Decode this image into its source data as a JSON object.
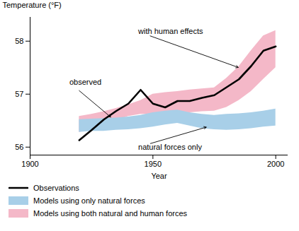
{
  "chart_data": {
    "type": "line",
    "xlabel": "Year",
    "ylabel": "Temperature (°F)",
    "xlim": [
      1900,
      2005
    ],
    "ylim": [
      55.85,
      58.45
    ],
    "xticks": [
      1900,
      1950,
      2000
    ],
    "yticks": [
      56,
      57,
      58
    ],
    "x": [
      1920,
      1925,
      1930,
      1935,
      1940,
      1945,
      1950,
      1955,
      1960,
      1965,
      1970,
      1975,
      1980,
      1985,
      1990,
      1995,
      2000
    ],
    "series": [
      {
        "name": "Observations",
        "type": "line",
        "color": "#000000",
        "values": [
          56.13,
          56.32,
          56.52,
          56.68,
          56.82,
          57.08,
          56.82,
          56.75,
          56.87,
          56.87,
          56.93,
          56.98,
          57.13,
          57.28,
          57.53,
          57.82,
          57.9
        ]
      },
      {
        "name": "Models using only natural forces",
        "type": "area",
        "color": "#a8cfe8",
        "low": [
          56.28,
          56.3,
          56.3,
          56.32,
          56.33,
          56.35,
          56.38,
          56.42,
          56.45,
          56.4,
          56.35,
          56.33,
          56.32,
          56.33,
          56.35,
          56.38,
          56.4
        ],
        "high": [
          56.52,
          56.53,
          56.54,
          56.55,
          56.57,
          56.6,
          56.65,
          56.68,
          56.7,
          56.65,
          56.62,
          56.6,
          56.62,
          56.63,
          56.65,
          56.68,
          56.72
        ]
      },
      {
        "name": "Models using both natural and human forces",
        "type": "area",
        "color": "#f4b8c8",
        "low": [
          56.28,
          56.33,
          56.4,
          56.5,
          56.58,
          56.62,
          56.62,
          56.62,
          56.63,
          56.65,
          56.67,
          56.68,
          56.75,
          56.88,
          57.05,
          57.28,
          57.5
        ],
        "high": [
          56.58,
          56.62,
          56.67,
          56.73,
          56.8,
          56.88,
          57.0,
          57.03,
          57.05,
          57.08,
          57.1,
          57.12,
          57.3,
          57.52,
          57.82,
          58.1,
          58.2
        ]
      }
    ],
    "annotations": [
      {
        "text": "observed",
        "x": 1933,
        "y": 56.56,
        "text_x": 1916,
        "text_y": 57.22
      },
      {
        "text": "with human effects",
        "x": 1985,
        "y": 57.5,
        "text_x": 1944,
        "text_y": 58.18
      },
      {
        "text": "natural forces only",
        "x": 1972,
        "y": 56.38,
        "text_x": 1944,
        "text_y": 56.0
      }
    ],
    "legend": "bottom"
  }
}
